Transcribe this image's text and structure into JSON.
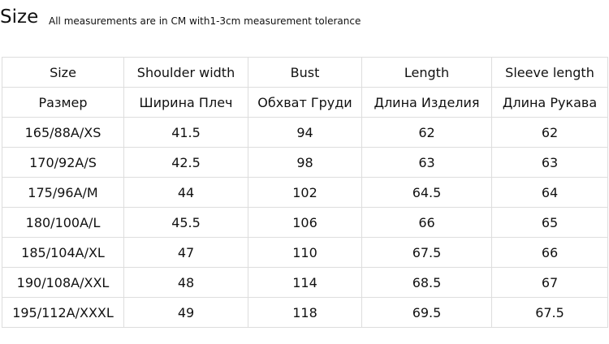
{
  "header": {
    "title": "Size",
    "note": "All measurements are in CM with1-3cm measurement tolerance"
  },
  "table": {
    "columns": [
      "Size",
      "Shoulder width",
      "Bust",
      "Length",
      "Sleeve length"
    ],
    "columns_ru": [
      "Размер",
      "Ширина Плеч",
      "Обхват Груди",
      "Длина Изделия",
      "Длина Рукава"
    ],
    "rows": [
      [
        "165/88A/XS",
        41.5,
        94,
        62,
        62
      ],
      [
        "170/92A/S",
        42.5,
        98,
        63,
        63
      ],
      [
        "175/96A/M",
        44,
        102,
        64.5,
        64
      ],
      [
        "180/100A/L",
        45.5,
        106,
        66,
        65
      ],
      [
        "185/104A/XL",
        47,
        110,
        67.5,
        66
      ],
      [
        "190/108A/XXL",
        48,
        114,
        68.5,
        67
      ],
      [
        "195/112A/XXXL",
        49,
        118,
        69.5,
        67.5
      ]
    ]
  }
}
